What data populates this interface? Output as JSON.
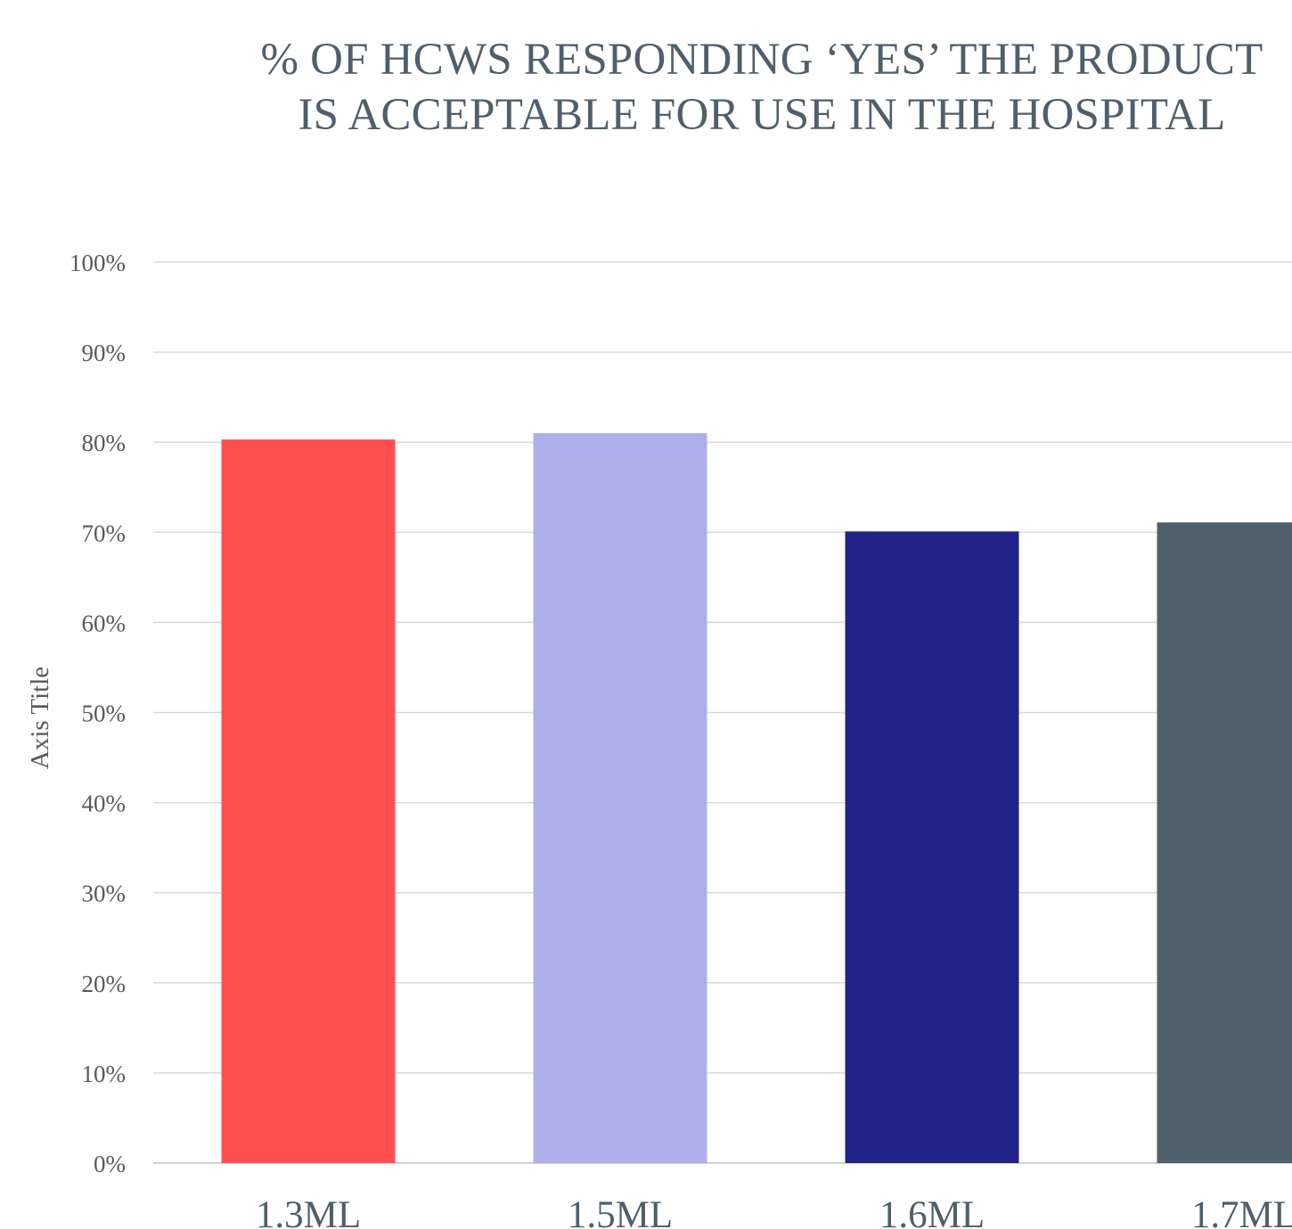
{
  "chart_data": {
    "type": "bar",
    "title_lines": [
      "% OF HCWS RESPONDING ‘YES’ THE PRODUCT",
      "IS ACCEPTABLE FOR USE IN THE HOSPITAL"
    ],
    "ylabel": "Axis Title",
    "xlabel": "",
    "categories": [
      "1.3ML",
      "1.5ML",
      "1.6ML",
      "1.7ML"
    ],
    "values": [
      80.3,
      81.0,
      70.1,
      71.1
    ],
    "colors": [
      "#ff4f4f",
      "#aeaeea",
      "#222388",
      "#50606b"
    ],
    "ylim": [
      0,
      100
    ],
    "yticks": [
      0,
      10,
      20,
      30,
      40,
      50,
      60,
      70,
      80,
      90,
      100
    ],
    "ytick_labels": [
      "0%",
      "10%",
      "20%",
      "30%",
      "40%",
      "50%",
      "60%",
      "70%",
      "80%",
      "90%",
      "100%"
    ],
    "grid": true,
    "legend": "none"
  }
}
